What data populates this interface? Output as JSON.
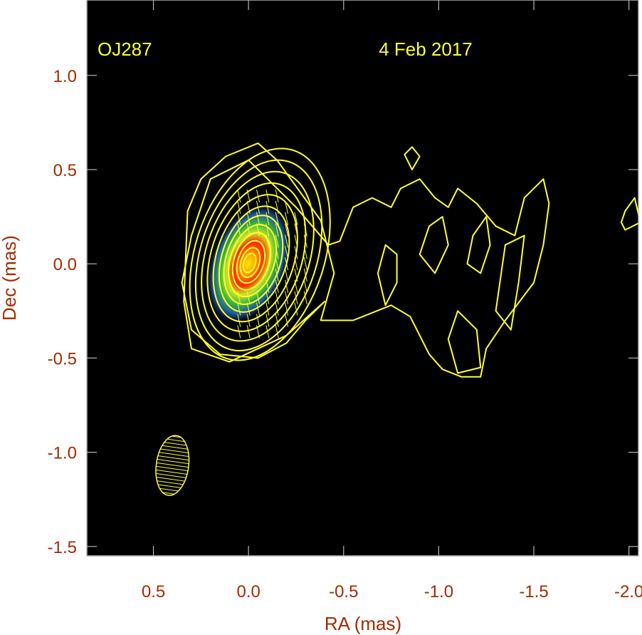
{
  "chart_data": {
    "type": "heatmap",
    "xlabel": "RA (mas)",
    "ylabel": "Dec (mas)",
    "xlim": [
      0.85,
      -2.05
    ],
    "ylim": [
      -1.55,
      1.4
    ],
    "x_ticks": [
      0.5,
      0.0,
      -0.5,
      -1.0,
      -1.5,
      -2.0
    ],
    "x_tick_labels": [
      "0.5",
      "0.0",
      "-0.5",
      "-1.0",
      "-1.5",
      "-2.0"
    ],
    "y_ticks": [
      1.0,
      0.5,
      0.0,
      -0.5,
      -1.0,
      -1.5
    ],
    "y_tick_labels": [
      "1.0",
      "0.5",
      "0.0",
      "-0.5",
      "-1.0",
      "-1.5"
    ],
    "annotations": {
      "source": "OJ287",
      "date": "4 Feb 2017"
    },
    "grid": false,
    "colors": {
      "background": "#000000",
      "contours": "#ffff33",
      "axis_text": "#a52a00",
      "colormap": [
        "#1c2a8c",
        "#1f8f8c",
        "#3cb43c",
        "#c8e628",
        "#ff8c00",
        "#ff2200",
        "#ffdd00"
      ]
    },
    "core": {
      "ra": 0.0,
      "dec": 0.0
    },
    "beam": {
      "ra": 0.4,
      "dec": -1.07,
      "major_mas": 0.32,
      "minor_mas": 0.17,
      "pa_deg": 8
    },
    "contours": [
      {
        "name": "outer-0",
        "points": [
          [
            0.32,
            0.28
          ],
          [
            0.25,
            0.45
          ],
          [
            0.12,
            0.57
          ],
          [
            -0.05,
            0.64
          ],
          [
            -0.15,
            0.55
          ],
          [
            -0.38,
            0.23
          ],
          [
            -0.45,
            -0.05
          ],
          [
            -0.38,
            -0.3
          ],
          [
            -0.55,
            -0.3
          ],
          [
            -0.75,
            -0.22
          ],
          [
            -0.85,
            -0.28
          ],
          [
            -0.95,
            -0.48
          ],
          [
            -1.02,
            -0.56
          ],
          [
            -1.12,
            -0.6
          ],
          [
            -1.22,
            -0.6
          ],
          [
            -1.25,
            -0.45
          ],
          [
            -1.35,
            -0.3
          ],
          [
            -1.5,
            -0.1
          ],
          [
            -1.55,
            0.1
          ],
          [
            -1.58,
            0.32
          ],
          [
            -1.55,
            0.45
          ],
          [
            -1.45,
            0.35
          ],
          [
            -1.4,
            0.15
          ],
          [
            -1.3,
            0.2
          ],
          [
            -1.2,
            0.32
          ],
          [
            -1.1,
            0.4
          ],
          [
            -1.05,
            0.3
          ],
          [
            -0.98,
            0.35
          ],
          [
            -0.9,
            0.45
          ],
          [
            -0.8,
            0.4
          ],
          [
            -0.75,
            0.3
          ],
          [
            -0.65,
            0.35
          ],
          [
            -0.55,
            0.3
          ],
          [
            -0.48,
            0.12
          ],
          [
            -0.42,
            0.1
          ],
          [
            -0.25,
            0.3
          ],
          [
            0.0,
            0.55
          ],
          [
            0.2,
            0.45
          ],
          [
            0.3,
            0.15
          ],
          [
            0.35,
            -0.1
          ],
          [
            0.3,
            -0.35
          ],
          [
            0.15,
            -0.48
          ],
          [
            -0.05,
            -0.5
          ],
          [
            -0.2,
            -0.42
          ],
          [
            -0.3,
            -0.3
          ],
          [
            -0.4,
            -0.2
          ],
          [
            -0.2,
            -0.38
          ],
          [
            0.1,
            -0.52
          ],
          [
            0.3,
            -0.45
          ],
          [
            0.34,
            -0.2
          ],
          [
            0.32,
            0.28
          ]
        ]
      },
      {
        "name": "jet-ring-1",
        "points": [
          [
            -0.68,
            -0.05
          ],
          [
            -0.72,
            -0.22
          ],
          [
            -0.78,
            -0.1
          ],
          [
            -0.78,
            0.05
          ],
          [
            -0.72,
            0.1
          ],
          [
            -0.68,
            -0.05
          ]
        ]
      },
      {
        "name": "jet-ring-2",
        "points": [
          [
            -0.95,
            0.2
          ],
          [
            -0.9,
            0.05
          ],
          [
            -0.98,
            -0.05
          ],
          [
            -1.05,
            0.1
          ],
          [
            -1.02,
            0.25
          ],
          [
            -0.95,
            0.2
          ]
        ]
      },
      {
        "name": "jet-ring-3",
        "points": [
          [
            -1.18,
            0.15
          ],
          [
            -1.15,
            0.0
          ],
          [
            -1.22,
            -0.05
          ],
          [
            -1.27,
            0.1
          ],
          [
            -1.25,
            0.25
          ],
          [
            -1.18,
            0.15
          ]
        ]
      },
      {
        "name": "jet-ring-4",
        "points": [
          [
            -1.3,
            -0.25
          ],
          [
            -1.38,
            -0.35
          ],
          [
            -1.42,
            -0.1
          ],
          [
            -1.45,
            0.15
          ],
          [
            -1.35,
            0.1
          ],
          [
            -1.3,
            -0.25
          ]
        ]
      },
      {
        "name": "jet-ring-5",
        "points": [
          [
            -1.1,
            -0.25
          ],
          [
            -1.05,
            -0.4
          ],
          [
            -1.1,
            -0.58
          ],
          [
            -1.22,
            -0.55
          ],
          [
            -1.2,
            -0.35
          ],
          [
            -1.1,
            -0.25
          ]
        ]
      },
      {
        "name": "jet-blob-top",
        "points": [
          [
            -0.82,
            0.58
          ],
          [
            -0.86,
            0.62
          ],
          [
            -0.9,
            0.57
          ],
          [
            -0.86,
            0.5
          ],
          [
            -0.82,
            0.58
          ]
        ]
      },
      {
        "name": "jet-blob-right",
        "points": [
          [
            -1.98,
            0.28
          ],
          [
            -2.03,
            0.35
          ],
          [
            -2.06,
            0.22
          ],
          [
            -1.98,
            0.18
          ],
          [
            -1.96,
            0.22
          ],
          [
            -1.98,
            0.28
          ]
        ]
      }
    ]
  }
}
